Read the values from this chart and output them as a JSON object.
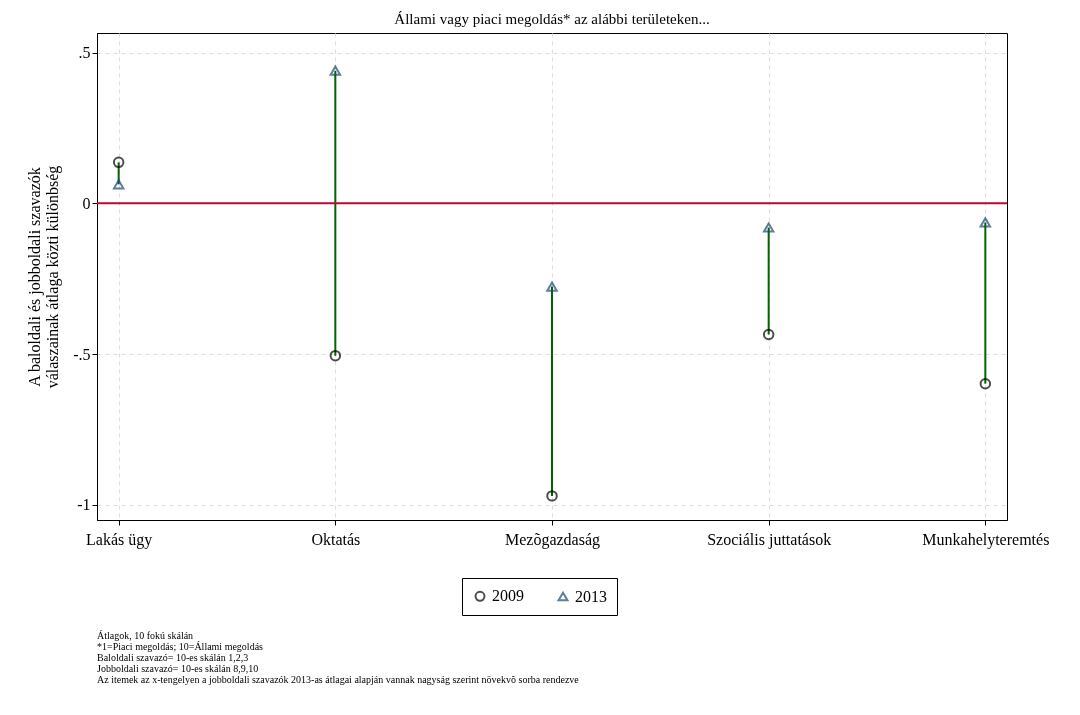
{
  "chart_data": {
    "type": "scatter",
    "title": "Állami vagy piaci megoldás* az alábbi területeken...",
    "ylabel": "A baloldali és jobboldali szavazók\nválaszainak átlaga közti különbség",
    "categories": [
      "Lakás ügy",
      "Oktatás",
      "Mezõgazdaság",
      "Szociális juttatások",
      "Munkahelyteremtés"
    ],
    "series": [
      {
        "type": "bar",
        "color": "#006400",
        "base": [
          0.136,
          -0.505,
          -0.97,
          -0.435,
          -0.598
        ],
        "values": [
          -0.073,
          0.945,
          0.694,
          0.355,
          0.535
        ]
      },
      {
        "name": "2009",
        "color": "#000000",
        "marker": "circle",
        "values": [
          0.136,
          -0.505,
          -0.97,
          -0.435,
          -0.598
        ]
      },
      {
        "name": "2013",
        "color": "#1a476f",
        "marker": "triangle",
        "values": [
          0.063,
          0.44,
          -0.276,
          -0.08,
          -0.063
        ]
      }
    ],
    "ylim": [
      -1.05,
      0.565
    ],
    "yticks": [
      {
        "value": 0.5,
        "label": ".5"
      },
      0,
      {
        "value": -0.5,
        "label": "-.5"
      },
      -1
    ],
    "ref_lines": [
      {
        "axis": "y",
        "value": 0,
        "color": "#c10534"
      }
    ],
    "grid": true,
    "legend": "bottom",
    "annotations": [
      "Átlagok, 10 fokú skálán",
      "*1=Piaci megoldás; 10=Állami megoldás",
      "Baloldali szavazó= 10-es skálán 1,2,3",
      "Jobboldali szavazó= 10-es skálán 8,9,10",
      "Az itemek az x-tengelyen a jobboldali szavazók 2013-as átlagai alapján vannak nagyság szerint növekvõ sorba rendezve"
    ]
  }
}
